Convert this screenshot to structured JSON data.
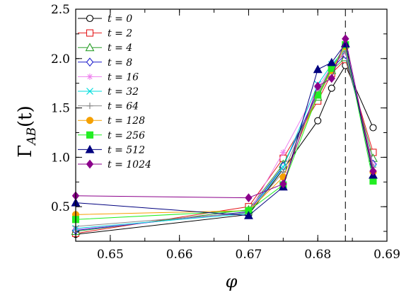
{
  "chart_data": {
    "type": "line",
    "title": "",
    "xlabel": "φ",
    "ylabel_main": "Γ",
    "ylabel_sub": "AB",
    "ylabel_arg": "(t)",
    "xlim": [
      0.645,
      0.69
    ],
    "ylim": [
      0.15,
      2.5
    ],
    "xticks": [
      0.65,
      0.66,
      0.67,
      0.68,
      0.69
    ],
    "xtick_labels": [
      "0.65",
      "0.66",
      "0.67",
      "0.68",
      "0.69"
    ],
    "yticks": [
      0.5,
      1.0,
      1.5,
      2.0,
      2.5
    ],
    "ytick_labels": [
      "0.5",
      "1.0",
      "1.5",
      "2.0",
      "2.5"
    ],
    "x": [
      0.645,
      0.67,
      0.675,
      0.68,
      0.682,
      0.684,
      0.688
    ],
    "vline_x": 0.684,
    "legend_position": "top-left",
    "series": [
      {
        "name": "t = 0",
        "color": "#000000",
        "marker": "circle-open",
        "values": [
          0.22,
          0.42,
          0.88,
          1.37,
          1.7,
          1.93,
          1.3
        ]
      },
      {
        "name": "t = 2",
        "color": "#e41a1c",
        "marker": "square-open",
        "values": [
          0.23,
          0.5,
          0.99,
          1.57,
          1.85,
          1.99,
          1.05
        ]
      },
      {
        "name": "t = 4",
        "color": "#2ca02c",
        "marker": "triangle-open",
        "values": [
          0.25,
          0.47,
          0.93,
          1.61,
          1.88,
          2.01,
          0.99
        ]
      },
      {
        "name": "t = 8",
        "color": "#1f1fcc",
        "marker": "diamond-open",
        "values": [
          0.26,
          0.45,
          0.91,
          1.66,
          1.9,
          2.04,
          0.93
        ]
      },
      {
        "name": "t = 16",
        "color": "#ee82ee",
        "marker": "star",
        "values": [
          0.27,
          0.44,
          1.05,
          1.7,
          1.92,
          2.06,
          0.92
        ]
      },
      {
        "name": "t = 32",
        "color": "#00dddd",
        "marker": "x",
        "values": [
          0.28,
          0.43,
          0.9,
          1.74,
          1.94,
          2.09,
          0.89
        ]
      },
      {
        "name": "t = 64",
        "color": "#888888",
        "marker": "plus",
        "values": [
          0.3,
          0.44,
          0.85,
          1.65,
          1.92,
          2.07,
          0.9
        ]
      },
      {
        "name": "t = 128",
        "color": "#f5a000",
        "marker": "circle-filled",
        "values": [
          0.42,
          0.46,
          0.8,
          1.63,
          1.88,
          2.12,
          0.85
        ]
      },
      {
        "name": "t = 256",
        "color": "#22ee22",
        "marker": "square-filled",
        "values": [
          0.37,
          0.46,
          0.72,
          1.63,
          1.9,
          2.14,
          0.76
        ]
      },
      {
        "name": "t = 512",
        "color": "#00007f",
        "marker": "triangle-filled",
        "values": [
          0.54,
          0.41,
          0.7,
          1.89,
          1.96,
          2.15,
          0.82
        ]
      },
      {
        "name": "t = 1024",
        "color": "#8b008b",
        "marker": "diamond-filled",
        "values": [
          0.61,
          0.59,
          0.73,
          1.72,
          1.8,
          2.2,
          0.86
        ]
      }
    ]
  }
}
